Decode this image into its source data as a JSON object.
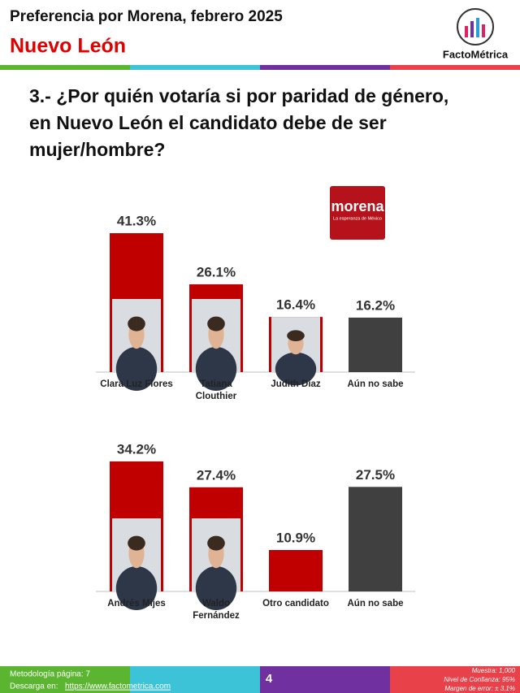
{
  "header": {
    "title": "Preferencia por Morena, febrero 2025",
    "subtitle": "Nuevo León",
    "brand": "FactoMétrica"
  },
  "question_lines": [
    "3.- ¿Por quién votaría si por paridad de género,",
    "en Nuevo León el candidato debe de ser",
    "mujer/hombre?"
  ],
  "party_logo": {
    "name": "morena",
    "tagline": "La esperanza de México"
  },
  "chart_data": [
    {
      "type": "bar",
      "categories": [
        "Clara Luz Flores",
        "Tatiana Clouthier",
        "Judith Díaz",
        "Aún no sabe"
      ],
      "values": [
        41.3,
        26.1,
        16.4,
        16.2
      ],
      "value_labels": [
        "41.3%",
        "26.1%",
        "16.4%",
        "16.2%"
      ],
      "colors": [
        "#c00000",
        "#c00000",
        "#c00000",
        "#404040"
      ]
    },
    {
      "type": "bar",
      "categories": [
        "Andrés Mijes",
        "Waldo Fernández",
        "Otro candidato",
        "Aún no sabe"
      ],
      "values": [
        34.2,
        27.4,
        10.9,
        27.5
      ],
      "value_labels": [
        "34.2%",
        "27.4%",
        "10.9%",
        "27.5%"
      ],
      "colors": [
        "#c00000",
        "#c00000",
        "#c00000",
        "#404040"
      ]
    }
  ],
  "footer": {
    "methodology": "Metodología página: 7",
    "download_label": "Descarga en:",
    "download_url": "https://www.factometrica.com",
    "page": "4",
    "sample": "Muestra: 1,000",
    "confidence": "Nivel de Confianza: 95%",
    "margin": "Margen de error: ± 3.1%"
  }
}
